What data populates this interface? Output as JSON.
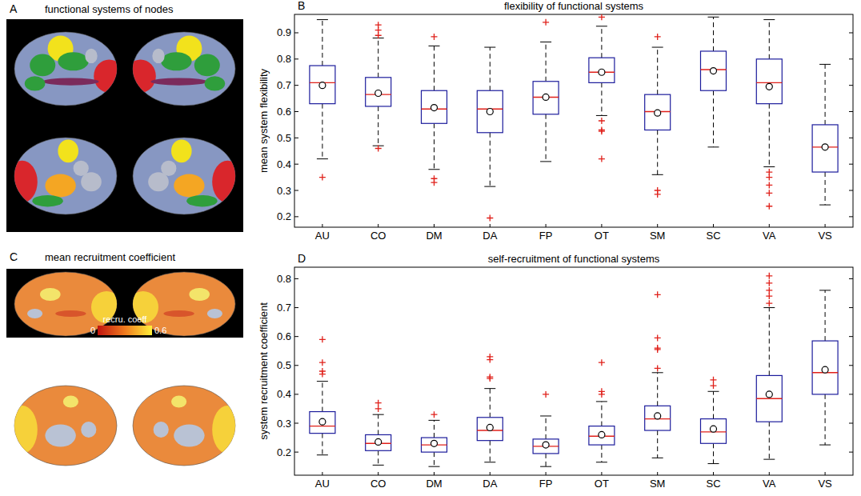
{
  "chart_data": [
    {
      "type": "image",
      "panel": "A",
      "title": "functional systems of nodes"
    },
    {
      "type": "box",
      "panel": "B",
      "title": "flexibility of functional systems",
      "y_label": "mean system flexibility",
      "categories": [
        "AU",
        "CO",
        "DM",
        "DA",
        "FP",
        "OT",
        "SM",
        "SC",
        "VA",
        "VS"
      ],
      "boxes": [
        {
          "whisker_low": 0.42,
          "q1": 0.63,
          "median": 0.71,
          "q3": 0.775,
          "whisker_high": 0.95,
          "mean": 0.7,
          "outliers": [
            0.35
          ]
        },
        {
          "whisker_low": 0.47,
          "q1": 0.62,
          "median": 0.665,
          "q3": 0.73,
          "whisker_high": 0.88,
          "mean": 0.67,
          "outliers": [
            0.89,
            0.91,
            0.93,
            0.46
          ]
        },
        {
          "whisker_low": 0.38,
          "q1": 0.555,
          "median": 0.61,
          "q3": 0.68,
          "whisker_high": 0.85,
          "mean": 0.615,
          "outliers": [
            0.885,
            0.345,
            0.33
          ]
        },
        {
          "whisker_low": 0.315,
          "q1": 0.52,
          "median": 0.61,
          "q3": 0.68,
          "whisker_high": 0.845,
          "mean": 0.6,
          "outliers": [
            0.195
          ]
        },
        {
          "whisker_low": 0.41,
          "q1": 0.59,
          "median": 0.655,
          "q3": 0.715,
          "whisker_high": 0.865,
          "mean": 0.655,
          "outliers": [
            0.94
          ]
        },
        {
          "whisker_low": 0.585,
          "q1": 0.71,
          "median": 0.75,
          "q3": 0.805,
          "whisker_high": 0.925,
          "mean": 0.75,
          "outliers": [
            0.96,
            0.565,
            0.53,
            0.525,
            0.42
          ]
        },
        {
          "whisker_low": 0.36,
          "q1": 0.53,
          "median": 0.6,
          "q3": 0.665,
          "whisker_high": 0.845,
          "mean": 0.595,
          "outliers": [
            0.885,
            0.3,
            0.285
          ]
        },
        {
          "whisker_low": 0.465,
          "q1": 0.68,
          "median": 0.76,
          "q3": 0.83,
          "whisker_high": 0.96,
          "mean": 0.755,
          "outliers": []
        },
        {
          "whisker_low": 0.39,
          "q1": 0.63,
          "median": 0.71,
          "q3": 0.8,
          "whisker_high": 0.95,
          "mean": 0.695,
          "outliers": [
            0.37,
            0.35,
            0.32,
            0.29,
            0.24
          ]
        },
        {
          "whisker_low": 0.245,
          "q1": 0.37,
          "median": 0.465,
          "q3": 0.55,
          "whisker_high": 0.78,
          "mean": 0.465,
          "outliers": []
        }
      ],
      "ylim": [
        0.16,
        0.97
      ],
      "yticks": [
        0.2,
        0.3,
        0.4,
        0.5,
        0.6,
        0.7,
        0.8,
        0.9
      ],
      "color": "#1c1c9c"
    },
    {
      "type": "image",
      "panel": "C",
      "title": "mean recruitment coefficient",
      "colorbar": {
        "label": "recru. coeff",
        "range": [
          0,
          0.6
        ],
        "ticks": [
          0,
          0.6
        ]
      }
    },
    {
      "type": "box",
      "panel": "D",
      "title": "self-recruitment of functional systems",
      "y_label": "system recruitment coefficient",
      "categories": [
        "AU",
        "CO",
        "DM",
        "DA",
        "FP",
        "OT",
        "SM",
        "SC",
        "VA",
        "VS"
      ],
      "boxes": [
        {
          "whisker_low": 0.19,
          "q1": 0.265,
          "median": 0.29,
          "q3": 0.34,
          "whisker_high": 0.445,
          "mean": 0.305,
          "outliers": [
            0.47,
            0.48,
            0.51,
            0.59
          ]
        },
        {
          "whisker_low": 0.155,
          "q1": 0.205,
          "median": 0.23,
          "q3": 0.26,
          "whisker_high": 0.33,
          "mean": 0.235,
          "outliers": [
            0.35,
            0.37
          ]
        },
        {
          "whisker_low": 0.15,
          "q1": 0.2,
          "median": 0.225,
          "q3": 0.25,
          "whisker_high": 0.31,
          "mean": 0.23,
          "outliers": [
            0.33
          ]
        },
        {
          "whisker_low": 0.165,
          "q1": 0.24,
          "median": 0.275,
          "q3": 0.32,
          "whisker_high": 0.42,
          "mean": 0.285,
          "outliers": [
            0.455,
            0.46,
            0.52,
            0.53
          ]
        },
        {
          "whisker_low": 0.15,
          "q1": 0.195,
          "median": 0.22,
          "q3": 0.245,
          "whisker_high": 0.325,
          "mean": 0.225,
          "outliers": [
            0.4
          ]
        },
        {
          "whisker_low": 0.165,
          "q1": 0.225,
          "median": 0.255,
          "q3": 0.29,
          "whisker_high": 0.375,
          "mean": 0.26,
          "outliers": [
            0.4,
            0.41,
            0.51
          ]
        },
        {
          "whisker_low": 0.18,
          "q1": 0.275,
          "median": 0.315,
          "q3": 0.36,
          "whisker_high": 0.475,
          "mean": 0.325,
          "outliers": [
            0.49,
            0.555,
            0.56,
            0.595,
            0.745
          ]
        },
        {
          "whisker_low": 0.16,
          "q1": 0.23,
          "median": 0.27,
          "q3": 0.315,
          "whisker_high": 0.41,
          "mean": 0.28,
          "outliers": [
            0.43,
            0.45
          ]
        },
        {
          "whisker_low": 0.175,
          "q1": 0.305,
          "median": 0.385,
          "q3": 0.465,
          "whisker_high": 0.7,
          "mean": 0.4,
          "outliers": [
            0.715,
            0.74,
            0.76,
            0.785,
            0.81
          ]
        },
        {
          "whisker_low": 0.225,
          "q1": 0.4,
          "median": 0.475,
          "q3": 0.585,
          "whisker_high": 0.76,
          "mean": 0.485,
          "outliers": []
        }
      ],
      "ylim": [
        0.12,
        0.84
      ],
      "yticks": [
        0.2,
        0.3,
        0.4,
        0.5,
        0.6,
        0.7,
        0.8
      ],
      "color": "#1c1c9c"
    }
  ]
}
